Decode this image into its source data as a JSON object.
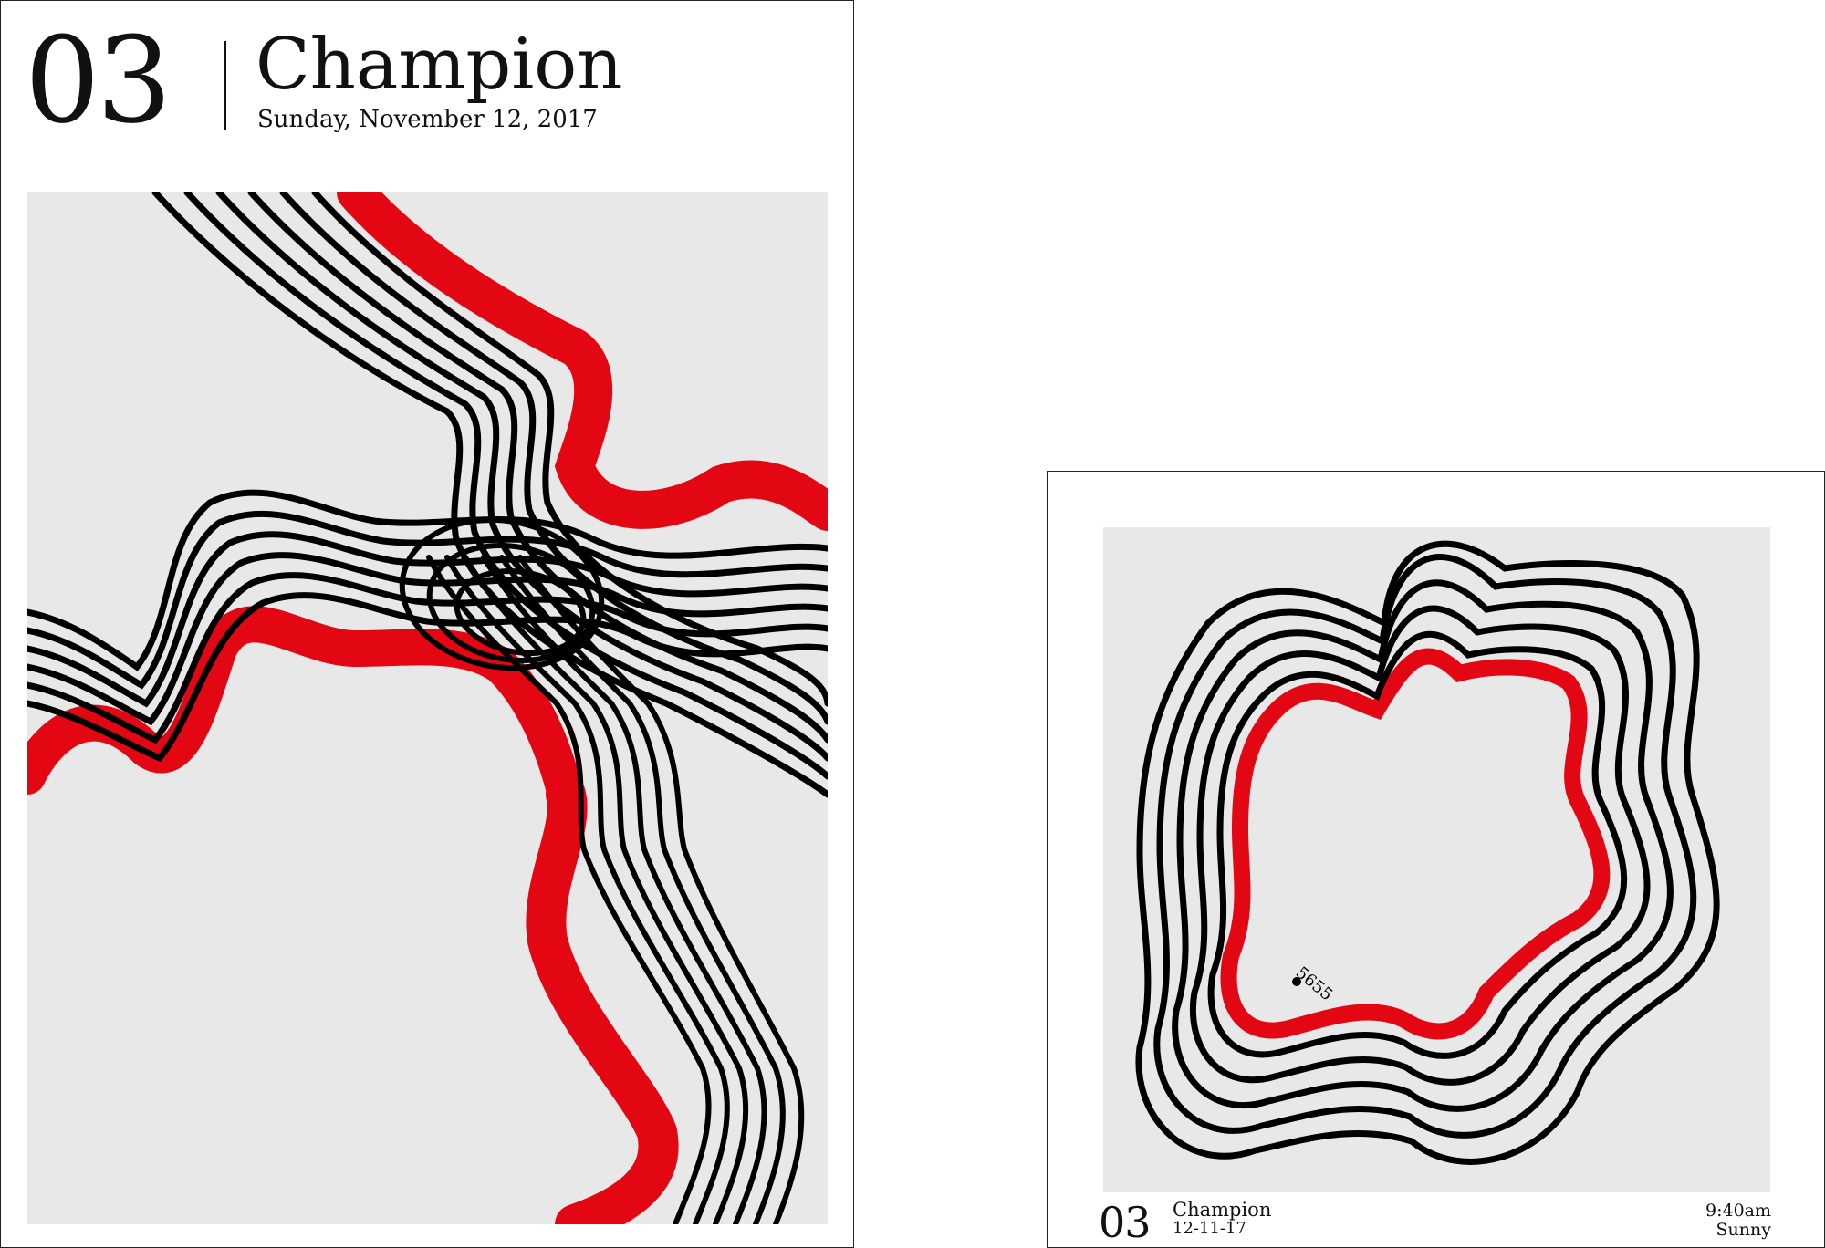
{
  "poster_large": {
    "number": "03",
    "title": "Champion",
    "date": "Sunday, November 12, 2017"
  },
  "poster_small": {
    "number": "03",
    "title": "Champion",
    "date": "12-11-17",
    "time": "9:40am",
    "weather": "Sunny",
    "marker_label": "5655"
  },
  "colors": {
    "background": "#e8e8e8",
    "accent": "#e30613",
    "ink": "#000000",
    "paper": "#ffffff"
  }
}
